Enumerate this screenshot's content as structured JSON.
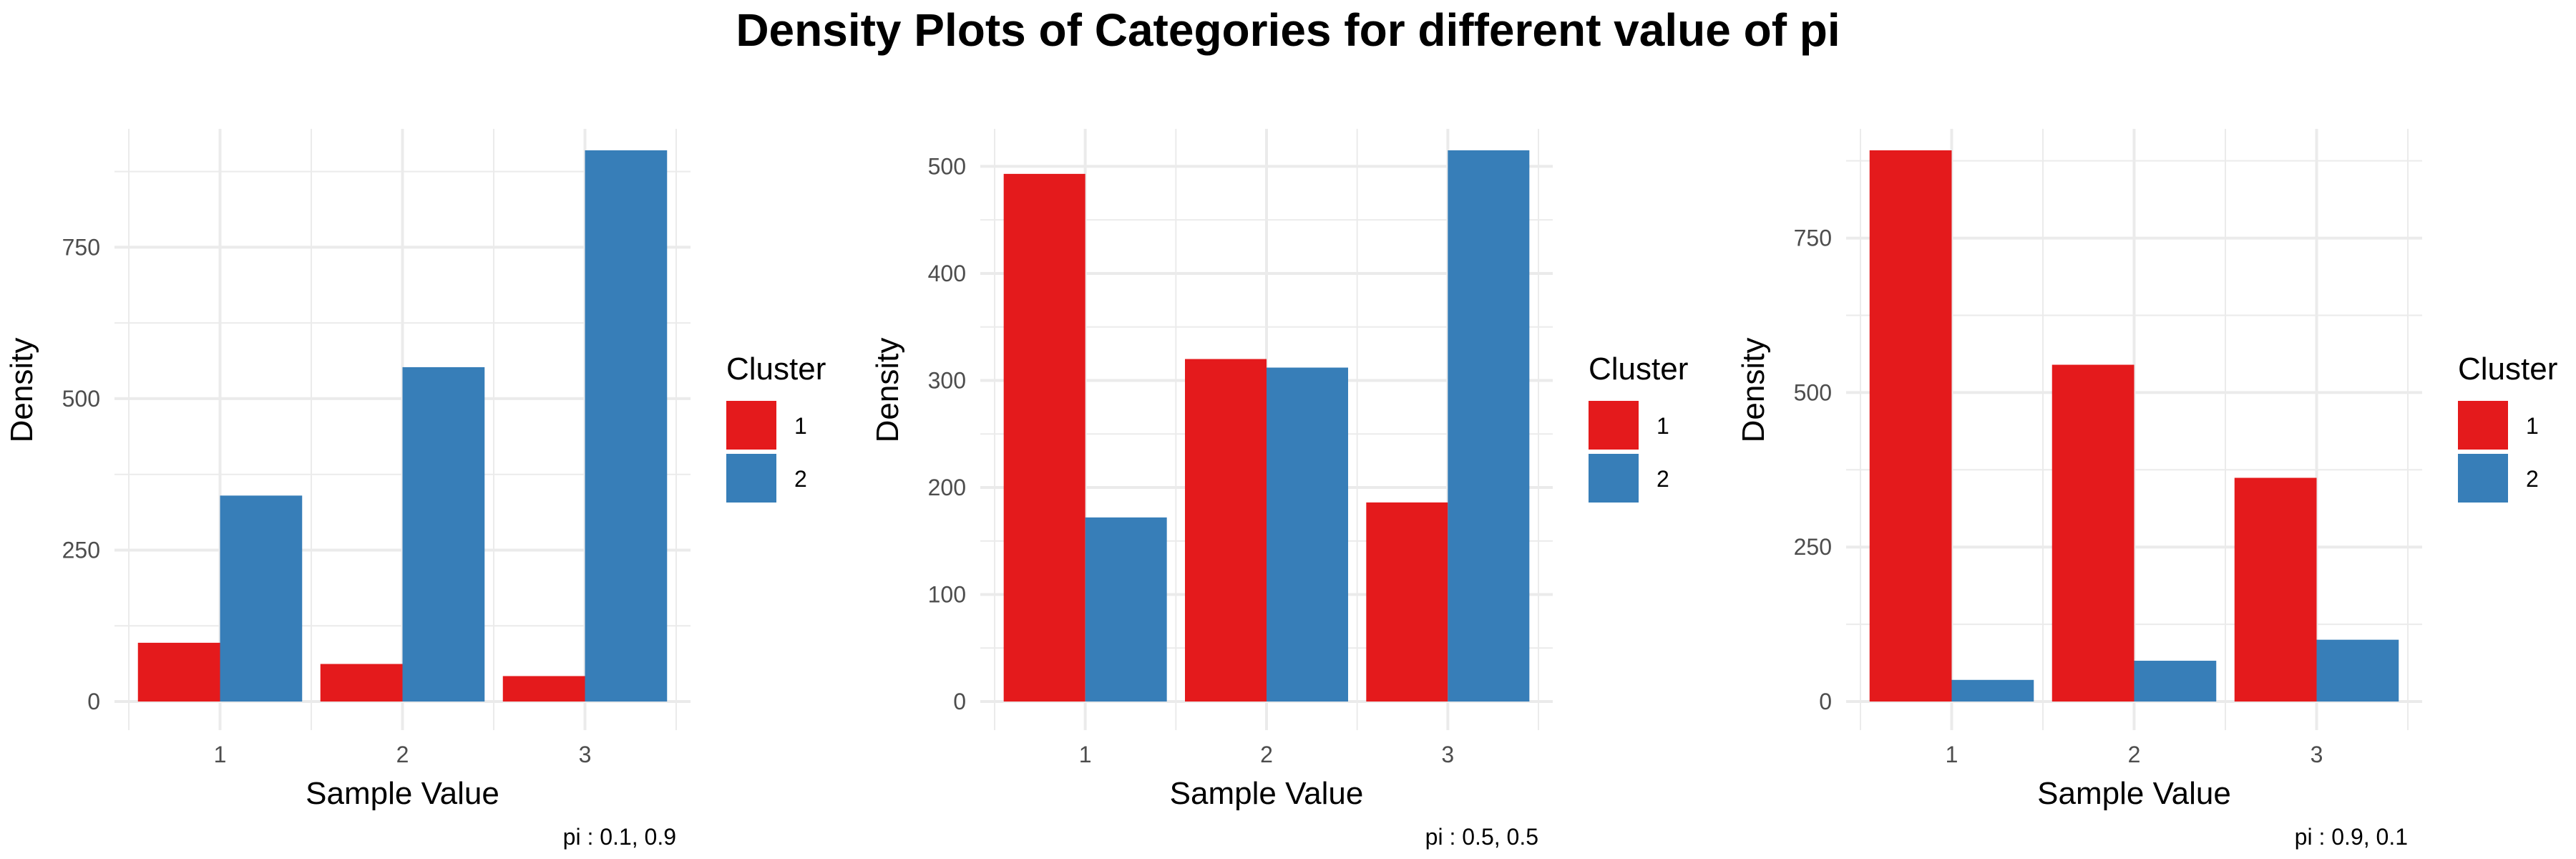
{
  "title": "Density Plots of Categories for different value of pi",
  "colors": {
    "cluster_1": "#E41A1C",
    "cluster_2": "#377EB8",
    "grid": "#ebebeb"
  },
  "chart_data": [
    {
      "type": "bar",
      "categories": [
        "1",
        "2",
        "3"
      ],
      "series": [
        {
          "name": "1",
          "values": [
            97,
            62,
            42
          ]
        },
        {
          "name": "2",
          "values": [
            340,
            552,
            910
          ]
        }
      ],
      "xlabel": "Sample Value",
      "ylabel": "Density",
      "ylim": [
        0,
        910
      ],
      "yticks": [
        0,
        250,
        500,
        750
      ],
      "yticklabels": [
        "0",
        "250",
        "500",
        "750"
      ],
      "legend_title": "Cluster",
      "legend_position": "right",
      "caption": "pi :  0.1, 0.9",
      "grid": true
    },
    {
      "type": "bar",
      "categories": [
        "1",
        "2",
        "3"
      ],
      "series": [
        {
          "name": "1",
          "values": [
            493,
            320,
            186
          ]
        },
        {
          "name": "2",
          "values": [
            172,
            312,
            515
          ]
        }
      ],
      "xlabel": "Sample Value",
      "ylabel": "Density",
      "ylim": [
        0,
        515
      ],
      "yticks": [
        0,
        100,
        200,
        300,
        400,
        500
      ],
      "yticklabels": [
        "0",
        "100",
        "200",
        "300",
        "400",
        "500"
      ],
      "legend_title": "Cluster",
      "legend_position": "right",
      "caption": "pi :  0.5, 0.5",
      "grid": true
    },
    {
      "type": "bar",
      "categories": [
        "1",
        "2",
        "3"
      ],
      "series": [
        {
          "name": "1",
          "values": [
            892,
            545,
            362
          ]
        },
        {
          "name": "2",
          "values": [
            35,
            66,
            100
          ]
        }
      ],
      "xlabel": "Sample Value",
      "ylabel": "Density",
      "ylim": [
        0,
        892
      ],
      "yticks": [
        0,
        250,
        500,
        750
      ],
      "yticklabels": [
        "0",
        "250",
        "500",
        "750"
      ],
      "legend_title": "Cluster",
      "legend_position": "right",
      "caption": "pi :  0.9, 0.1",
      "grid": true
    }
  ]
}
